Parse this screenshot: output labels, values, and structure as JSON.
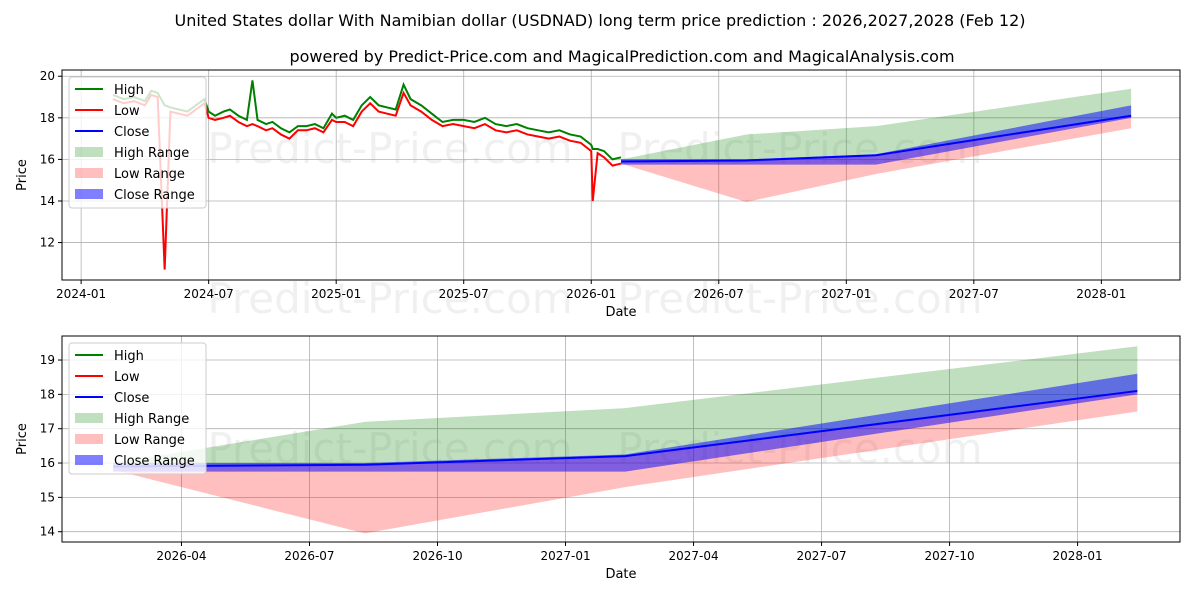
{
  "title": "United States dollar With Namibian dollar (USDNAD) long term price prediction : 2026,2027,2028 (Feb 12)",
  "subtitle": "powered by Predict-Price.com and MagicalPrediction.com and MagicalAnalysis.com",
  "watermark": "Predict-Price.com",
  "colors": {
    "high": "#008000",
    "low": "#ff0000",
    "close": "#0000ff",
    "high_range": "#c0dfc0",
    "low_range": "#ffc0c0",
    "close_range": "#8080ff"
  },
  "chart_data": [
    {
      "type": "line",
      "xlabel": "Date",
      "ylabel": "Price",
      "x_units": "months since 2024-01",
      "xlim": [
        -0.9,
        51.7
      ],
      "ylim": [
        10.2,
        20.3
      ],
      "xticks": [
        {
          "v": 0,
          "label": "2024-01"
        },
        {
          "v": 6,
          "label": "2024-07"
        },
        {
          "v": 12,
          "label": "2025-01"
        },
        {
          "v": 18,
          "label": "2025-07"
        },
        {
          "v": 24,
          "label": "2026-01"
        },
        {
          "v": 30,
          "label": "2026-07"
        },
        {
          "v": 36,
          "label": "2027-01"
        },
        {
          "v": 42,
          "label": "2027-07"
        },
        {
          "v": 48,
          "label": "2028-01"
        }
      ],
      "yticks": [
        12,
        14,
        16,
        18,
        20
      ],
      "legend": {
        "position": "upper-left",
        "entries": [
          "High",
          "Low",
          "Close",
          "High Range",
          "Low Range",
          "Close Range"
        ]
      }
    },
    {
      "type": "line",
      "xlabel": "Date",
      "ylabel": "Price",
      "x_units": "months since 2024-01",
      "xlim": [
        24.2,
        50.4
      ],
      "ylim": [
        13.7,
        19.7
      ],
      "xticks": [
        {
          "v": 27,
          "label": "2026-04"
        },
        {
          "v": 30,
          "label": "2026-07"
        },
        {
          "v": 33,
          "label": "2026-10"
        },
        {
          "v": 36,
          "label": "2027-01"
        },
        {
          "v": 39,
          "label": "2027-04"
        },
        {
          "v": 42,
          "label": "2027-07"
        },
        {
          "v": 45,
          "label": "2027-10"
        },
        {
          "v": 48,
          "label": "2028-01"
        }
      ],
      "yticks": [
        14,
        15,
        16,
        17,
        18,
        19
      ],
      "legend": {
        "position": "upper-left",
        "entries": [
          "High",
          "Low",
          "Close",
          "High Range",
          "Low Range",
          "Close Range"
        ]
      }
    }
  ],
  "history": {
    "x": [
      1.5,
      2,
      2.5,
      3,
      3.3,
      3.6,
      3.93,
      4.2,
      4.6,
      5,
      5.4,
      5.8,
      6,
      6.3,
      6.7,
      7,
      7.4,
      7.8,
      8.06,
      8.3,
      8.7,
      9,
      9.4,
      9.8,
      10.2,
      10.6,
      11,
      11.4,
      11.8,
      12,
      12.4,
      12.8,
      13.2,
      13.6,
      14,
      14.4,
      14.8,
      15.17,
      15.5,
      16,
      16.5,
      17,
      17.5,
      18,
      18.5,
      19,
      19.5,
      20,
      20.5,
      21,
      21.5,
      22,
      22.5,
      23,
      23.5,
      24,
      24.07,
      24.3,
      24.6,
      25,
      25.4
    ],
    "high": [
      19.1,
      18.9,
      19.0,
      18.8,
      19.3,
      19.2,
      18.6,
      18.5,
      18.4,
      18.3,
      18.6,
      18.9,
      18.3,
      18.1,
      18.3,
      18.4,
      18.1,
      17.9,
      19.8,
      17.9,
      17.7,
      17.8,
      17.5,
      17.3,
      17.6,
      17.6,
      17.7,
      17.5,
      18.2,
      18.0,
      18.1,
      17.9,
      18.6,
      19.0,
      18.6,
      18.5,
      18.4,
      19.6,
      18.9,
      18.6,
      18.2,
      17.8,
      17.9,
      17.9,
      17.8,
      18.0,
      17.7,
      17.6,
      17.7,
      17.5,
      17.4,
      17.3,
      17.4,
      17.2,
      17.1,
      16.7,
      16.5,
      16.5,
      16.4,
      16.0,
      16.1
    ],
    "low": [
      18.9,
      18.7,
      18.8,
      18.6,
      19.1,
      19.0,
      10.7,
      18.3,
      18.2,
      18.1,
      18.4,
      18.7,
      18.0,
      17.9,
      18.0,
      18.1,
      17.8,
      17.6,
      17.7,
      17.6,
      17.4,
      17.5,
      17.2,
      17.0,
      17.4,
      17.4,
      17.5,
      17.3,
      17.9,
      17.8,
      17.8,
      17.6,
      18.3,
      18.7,
      18.3,
      18.2,
      18.1,
      19.2,
      18.6,
      18.3,
      17.9,
      17.6,
      17.7,
      17.6,
      17.5,
      17.7,
      17.4,
      17.3,
      17.4,
      17.2,
      17.1,
      17.0,
      17.1,
      16.9,
      16.8,
      16.4,
      14.0,
      16.3,
      16.1,
      15.7,
      15.8
    ]
  },
  "forecast": {
    "x": [
      25.4,
      31.3,
      37.4,
      49.4
    ],
    "high": [
      16.0,
      17.2,
      17.6,
      19.4
    ],
    "low": [
      15.8,
      13.95,
      15.3,
      17.5
    ],
    "close": [
      15.9,
      15.95,
      16.2,
      18.1
    ],
    "close_upper": [
      16.0,
      16.0,
      16.25,
      18.6
    ],
    "close_lower": [
      15.75,
      15.75,
      15.75,
      18.0
    ]
  }
}
